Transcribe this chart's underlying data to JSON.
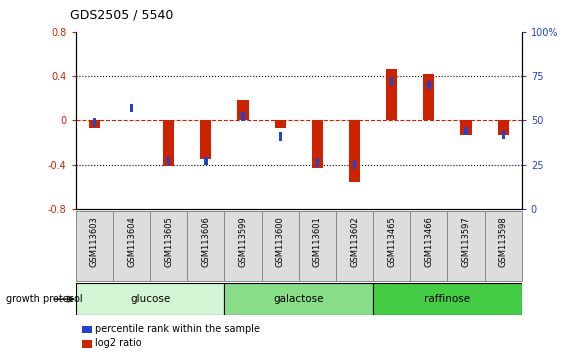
{
  "title": "GDS2505 / 5540",
  "samples": [
    "GSM113603",
    "GSM113604",
    "GSM113605",
    "GSM113606",
    "GSM113599",
    "GSM113600",
    "GSM113601",
    "GSM113602",
    "GSM113465",
    "GSM113466",
    "GSM113597",
    "GSM113598"
  ],
  "log2_ratio": [
    -0.07,
    0.0,
    -0.41,
    -0.35,
    0.18,
    -0.07,
    -0.43,
    -0.56,
    0.46,
    0.42,
    -0.13,
    -0.13
  ],
  "percentile_rank": [
    49,
    57,
    27,
    27,
    52,
    41,
    26,
    25,
    72,
    70,
    44,
    42
  ],
  "groups": [
    {
      "label": "glucose",
      "start": 0,
      "end": 4,
      "color": "#d4f5d4"
    },
    {
      "label": "galactose",
      "start": 4,
      "end": 8,
      "color": "#88de88"
    },
    {
      "label": "raffinose",
      "start": 8,
      "end": 12,
      "color": "#44cc44"
    }
  ],
  "left_ylim": [
    -0.8,
    0.8
  ],
  "right_ylim": [
    0,
    100
  ],
  "left_yticks": [
    -0.8,
    -0.4,
    0.0,
    0.4,
    0.8
  ],
  "right_yticks": [
    0,
    25,
    50,
    75,
    100
  ],
  "left_yticklabels": [
    "-0.8",
    "-0.4",
    "0",
    "0.4",
    "0.8"
  ],
  "right_yticklabels": [
    "0",
    "25",
    "50",
    "75",
    "100%"
  ],
  "hline_dotted": [
    -0.4,
    0.4
  ],
  "hline_red_dashed": 0.0,
  "bar_color_red": "#cc2200",
  "bar_color_blue": "#2244cc",
  "bar_width": 0.3,
  "blue_sq_size": 0.08,
  "left_tick_color": "#cc2200",
  "right_tick_color": "#2244cc",
  "legend_items": [
    {
      "color": "#cc2200",
      "label": "log2 ratio"
    },
    {
      "color": "#2244cc",
      "label": "percentile rank within the sample"
    }
  ],
  "growth_label": "growth protocol",
  "sample_box_color": "#dddddd",
  "sample_box_edge": "#888888"
}
